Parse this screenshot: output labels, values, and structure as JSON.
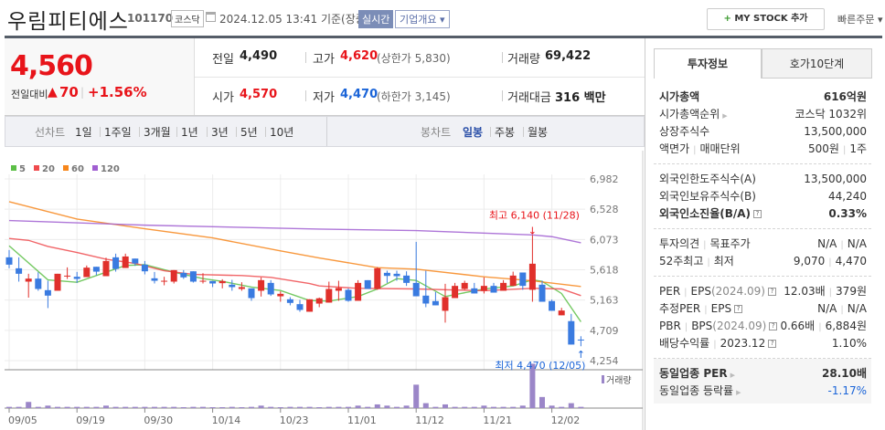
{
  "header": {
    "title": "우림피티에스",
    "code": "101170",
    "market": "코스닥",
    "datetime": "2024.12.05 13:41",
    "basis": "기준(장중)",
    "realtime_label": "실시간",
    "overview_label": "기업개요 ▾",
    "mystock_plus": "+",
    "mystock_label": "MY STOCK 추가",
    "quick_order_label": "빠른주문 ▾"
  },
  "quote": {
    "price": "4,560",
    "change_label": "전일대비",
    "change_arrow": "▲",
    "change": "70",
    "change_pct": "+1.56%",
    "prev_label": "전일",
    "prev": "4,490",
    "high_label": "고가",
    "high": "4,620",
    "upper_limit": "(상한가 5,830)",
    "volume_label": "거래량",
    "volume": "69,422",
    "open_label": "시가",
    "open": "4,570",
    "low_label": "저가",
    "low": "4,470",
    "lower_limit": "(하한가 3,145)",
    "amount_label": "거래대금",
    "amount": "316 백만"
  },
  "tabs": [
    "투자정보",
    "호가10단계"
  ],
  "info": [
    [
      {
        "label": "시가총액",
        "value": "616억원",
        "bold": true
      },
      {
        "label": "시가총액순위",
        "arrow": true,
        "value": "코스닥 1032위"
      },
      {
        "label": "상장주식수",
        "value": "13,500,000"
      },
      {
        "label": "액면가",
        "label2": "매매단위",
        "value": "500원",
        "value2": "1주"
      }
    ],
    [
      {
        "label": "외국인한도주식수(A)",
        "value": "13,500,000"
      },
      {
        "label": "외국인보유주식수(B)",
        "value": "44,240"
      },
      {
        "label": "외국인소진율(B/A)",
        "help": true,
        "bold": true,
        "value": "0.33%"
      }
    ],
    [
      {
        "label": "투자의견",
        "label2": "목표주가",
        "value": "N/A",
        "value2": "N/A"
      },
      {
        "label": "52주최고",
        "label2": "최저",
        "value": "9,070",
        "value2": "4,470"
      }
    ],
    [
      {
        "label": "PER",
        "label2": "EPS",
        "note": "(2024.09)",
        "help": true,
        "value": "12.03배",
        "value2": "379원"
      },
      {
        "label": "추정PER",
        "label2": "EPS",
        "help": true,
        "value": "N/A",
        "value2": "N/A"
      },
      {
        "label": "PBR",
        "label2": "BPS",
        "note": "(2024.09)",
        "help": true,
        "value": "0.66배",
        "value2": "6,884원"
      },
      {
        "label": "배당수익률",
        "label2": "2023.12",
        "help": true,
        "value": "1.10%"
      }
    ],
    [
      {
        "label": "동일업종 PER",
        "arrow": true,
        "bold": true,
        "value": "28.10배"
      },
      {
        "label": "동일업종 등락률",
        "arrow": true,
        "value": "-1.17%",
        "value_color": "#1a64d8"
      }
    ]
  ],
  "toolbar": {
    "line_label": "선차트",
    "line_periods": [
      "1일",
      "1주일",
      "3개월",
      "1년",
      "3년",
      "5년",
      "10년"
    ],
    "candle_label": "봉차트",
    "candle_periods": [
      "일봉",
      "주봉",
      "월봉"
    ],
    "candle_active": "일봉"
  },
  "chart_data": {
    "type": "candlestick",
    "legend": [
      {
        "name": "5",
        "color": "#5cbf47"
      },
      {
        "name": "20",
        "color": "#ef4a4d"
      },
      {
        "name": "60",
        "color": "#f7861b"
      },
      {
        "name": "120",
        "color": "#a05ed1"
      }
    ],
    "up_color": "#e0302b",
    "down_color": "#3a7be0",
    "y_ticks": [
      "6,982",
      "6,528",
      "6,073",
      "5,618",
      "5,163",
      "4,709",
      "4,254"
    ],
    "ylim": [
      4254,
      6982
    ],
    "x_tick_labels": [
      "09/05",
      "09/19",
      "09/30",
      "10/14",
      "10/23",
      "11/01",
      "11/12",
      "11/21",
      "12/02"
    ],
    "dates": [
      "09/05",
      "09/06",
      "09/09",
      "09/10",
      "09/11",
      "09/12",
      "09/13",
      "09/19",
      "09/20",
      "09/23",
      "09/24",
      "09/25",
      "09/26",
      "09/27",
      "09/30",
      "10/02",
      "10/04",
      "10/07",
      "10/08",
      "10/10",
      "10/11",
      "10/14",
      "10/15",
      "10/16",
      "10/17",
      "10/18",
      "10/21",
      "10/22",
      "10/23",
      "10/24",
      "10/25",
      "10/28",
      "10/29",
      "10/30",
      "10/31",
      "11/01",
      "11/04",
      "11/05",
      "11/06",
      "11/07",
      "11/08",
      "11/11",
      "11/12",
      "11/13",
      "11/14",
      "11/15",
      "11/18",
      "11/19",
      "11/20",
      "11/21",
      "11/22",
      "11/25",
      "11/26",
      "11/27",
      "11/28",
      "11/29",
      "12/02",
      "12/03",
      "12/04",
      "12/05"
    ],
    "ohlc": [
      [
        5805,
        5914,
        5640,
        5695
      ],
      [
        5640,
        5805,
        5440,
        5558
      ],
      [
        5440,
        5558,
        5200,
        5485
      ],
      [
        5485,
        5581,
        5303,
        5330
      ],
      [
        5312,
        5453,
        5043,
        5230
      ],
      [
        5303,
        5558,
        5303,
        5558
      ],
      [
        5517,
        5654,
        5481,
        5530
      ],
      [
        5513,
        5586,
        5421,
        5481
      ],
      [
        5508,
        5682,
        5508,
        5650
      ],
      [
        5663,
        5663,
        5535,
        5590
      ],
      [
        5522,
        5800,
        5522,
        5750
      ],
      [
        5805,
        5860,
        5590,
        5631
      ],
      [
        5645,
        5860,
        5645,
        5818
      ],
      [
        5786,
        5786,
        5677,
        5713
      ],
      [
        5695,
        5750,
        5549,
        5595
      ],
      [
        5490,
        5586,
        5412,
        5453
      ],
      [
        5450,
        5513,
        5385,
        5453
      ],
      [
        5440,
        5613,
        5412,
        5613
      ],
      [
        5572,
        5613,
        5481,
        5504
      ],
      [
        5595,
        5595,
        5426,
        5440
      ],
      [
        5450,
        5567,
        5412,
        5453
      ],
      [
        5449,
        5449,
        5358,
        5412
      ],
      [
        5417,
        5476,
        5339,
        5449
      ],
      [
        5394,
        5467,
        5303,
        5358
      ],
      [
        5330,
        5431,
        5303,
        5358
      ],
      [
        5339,
        5339,
        5152,
        5193
      ],
      [
        5303,
        5504,
        5216,
        5462
      ],
      [
        5421,
        5462,
        5225,
        5248
      ],
      [
        5220,
        5294,
        5138,
        5257
      ],
      [
        5175,
        5207,
        5084,
        5120
      ],
      [
        5102,
        5166,
        4988,
        5015
      ],
      [
        4988,
        5175,
        4988,
        5175
      ],
      [
        5110,
        5201,
        5056,
        5190
      ],
      [
        5125,
        5440,
        5125,
        5330
      ],
      [
        5303,
        5453,
        5152,
        5344
      ],
      [
        5317,
        5339,
        5138,
        5152
      ],
      [
        5152,
        5462,
        5152,
        5421
      ],
      [
        5462,
        5462,
        5330,
        5330
      ],
      [
        5330,
        5659,
        5317,
        5640
      ],
      [
        5572,
        5604,
        5421,
        5526
      ],
      [
        5558,
        5604,
        5453,
        5522
      ],
      [
        5531,
        5595,
        5376,
        5421
      ],
      [
        5421,
        6037,
        5220,
        5220
      ],
      [
        5230,
        5604,
        5056,
        5111
      ],
      [
        5148,
        5285,
        5084,
        5084
      ],
      [
        5002,
        5408,
        4824,
        5207
      ],
      [
        5193,
        5421,
        5193,
        5376
      ],
      [
        5330,
        5453,
        5317,
        5421
      ],
      [
        5339,
        5421,
        5262,
        5262
      ],
      [
        5303,
        5504,
        5262,
        5376
      ],
      [
        5376,
        5421,
        5275,
        5275
      ],
      [
        5303,
        5462,
        5303,
        5421
      ],
      [
        5376,
        5590,
        5376,
        5531
      ],
      [
        5577,
        5577,
        5317,
        5376
      ],
      [
        5317,
        6140,
        5138,
        5709
      ],
      [
        5394,
        5453,
        5138,
        5138
      ],
      [
        5148,
        5170,
        5002,
        5002
      ],
      [
        4934,
        5047,
        4934,
        5006
      ],
      [
        4847,
        4956,
        4495,
        4495
      ],
      [
        4570,
        4620,
        4470,
        4560
      ]
    ],
    "ma": {
      "5": [
        [
          1,
          5978
        ],
        [
          5,
          5467
        ],
        [
          8,
          5431
        ],
        [
          13,
          5682
        ],
        [
          15,
          5695
        ],
        [
          18,
          5581
        ],
        [
          21,
          5485
        ],
        [
          23,
          5444
        ],
        [
          26,
          5358
        ],
        [
          29,
          5307
        ],
        [
          32,
          5157
        ],
        [
          34,
          5148
        ],
        [
          37,
          5216
        ],
        [
          39,
          5330
        ],
        [
          41,
          5485
        ],
        [
          43,
          5458
        ],
        [
          46,
          5216
        ],
        [
          50,
          5330
        ],
        [
          53,
          5376
        ],
        [
          55,
          5467
        ],
        [
          56,
          5444
        ],
        [
          58,
          5262
        ],
        [
          60,
          4837
        ]
      ],
      "20": [
        [
          1,
          6088
        ],
        [
          3,
          6060
        ],
        [
          5,
          5969
        ],
        [
          8,
          5878
        ],
        [
          11,
          5777
        ],
        [
          14,
          5713
        ],
        [
          17,
          5604
        ],
        [
          20,
          5549
        ],
        [
          25,
          5531
        ],
        [
          28,
          5504
        ],
        [
          32,
          5412
        ],
        [
          33,
          5376
        ],
        [
          37,
          5339
        ],
        [
          43,
          5330
        ],
        [
          50,
          5303
        ],
        [
          55,
          5339
        ],
        [
          58,
          5330
        ],
        [
          60,
          5230
        ]
      ],
      "60": [
        [
          1,
          6640
        ],
        [
          8,
          6380
        ],
        [
          15,
          6234
        ],
        [
          22,
          6097
        ],
        [
          29,
          5901
        ],
        [
          33,
          5796
        ],
        [
          39,
          5650
        ],
        [
          43,
          5627
        ],
        [
          50,
          5513
        ],
        [
          55,
          5453
        ],
        [
          60,
          5367
        ]
      ],
      "120": [
        [
          1,
          6357
        ],
        [
          15,
          6288
        ],
        [
          33,
          6229
        ],
        [
          43,
          6206
        ],
        [
          55,
          6142
        ],
        [
          57,
          6115
        ],
        [
          60,
          6024
        ]
      ]
    },
    "volume_label": "거래량",
    "volume_color": "#9b86c8",
    "volume": [
      69000,
      69000,
      345000,
      69000,
      138000,
      69000,
      69000,
      69000,
      69000,
      69000,
      138000,
      69000,
      69000,
      69000,
      69000,
      69000,
      69000,
      69000,
      23000,
      69000,
      69000,
      23000,
      23000,
      69000,
      23000,
      69000,
      138000,
      69000,
      23000,
      69000,
      69000,
      69000,
      23000,
      69000,
      69000,
      69000,
      138000,
      69000,
      207000,
      138000,
      69000,
      138000,
      1311000,
      276000,
      69000,
      207000,
      69000,
      69000,
      69000,
      138000,
      69000,
      69000,
      69000,
      138000,
      2484000,
      621000,
      138000,
      69000,
      276000,
      69422
    ],
    "annotations": {
      "high": "최고 6,140 (11/28)",
      "low": "최저 4,470 (12/05)",
      "high_arrow": "↓",
      "low_arrow": "↑"
    }
  }
}
